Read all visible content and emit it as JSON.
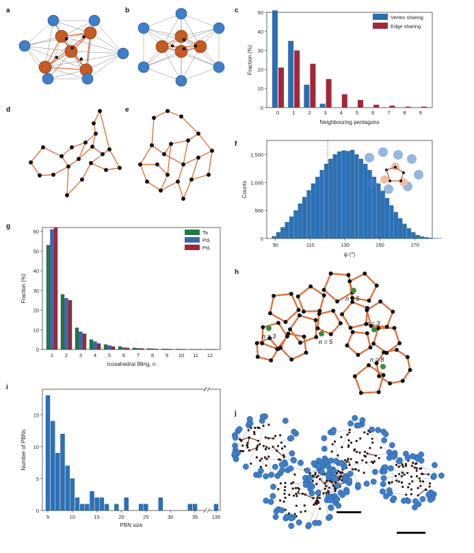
{
  "panel_letters": {
    "a": "a",
    "b": "b",
    "c": "c",
    "d": "d",
    "e": "e",
    "f": "f",
    "g": "g",
    "h": "h",
    "i": "i",
    "j": "j"
  },
  "colors": {
    "vertex": "#2a6db3",
    "edge": "#a3273a",
    "ta": "#1f7a4a",
    "pd1": "#3a66b8",
    "pd2": "#a3273a",
    "blue_bar": "#2a72b8",
    "pbn_bar": "#2a72b8",
    "orange_bond": "#e0703a",
    "blue_atom": "#3f7ec8",
    "orange_atom": "#c55a22",
    "black_atom": "#111111",
    "green_marker": "#3a8c3a"
  },
  "panel_h": {
    "labels": [
      "n = 5",
      "n = 3",
      "n = 3",
      "n = 5",
      "n = 8"
    ]
  },
  "chart_data": [
    {
      "panel": "c",
      "type": "bar",
      "categories": [
        "0",
        "1",
        "2",
        "3",
        "4",
        "5",
        "6",
        "7",
        "8",
        "9"
      ],
      "series": [
        {
          "name": "Vertex sharing",
          "values": [
            51,
            35,
            12,
            2,
            0,
            0,
            0,
            0,
            0,
            0
          ]
        },
        {
          "name": "Edge sharing",
          "values": [
            21,
            30,
            23,
            15,
            7,
            4,
            1.5,
            1,
            0.5,
            0.5
          ]
        }
      ],
      "xlabel": "Neighbouring pentagons",
      "ylabel": "Fraction (%)",
      "ylim": [
        0,
        50
      ],
      "yticks": [
        "0",
        "10",
        "20",
        "30",
        "40",
        "50"
      ],
      "legend": "top-right"
    },
    {
      "panel": "f",
      "type": "bar",
      "x_start": 88,
      "bin_width": 2.5,
      "values": [
        40,
        110,
        200,
        290,
        390,
        500,
        620,
        740,
        860,
        980,
        1100,
        1220,
        1330,
        1420,
        1500,
        1550,
        1570,
        1560,
        1580,
        1500,
        1420,
        1330,
        1220,
        1100,
        980,
        850,
        720,
        590,
        470,
        360,
        260,
        180,
        110,
        60,
        35,
        20,
        10,
        5,
        3
      ],
      "xlabel": "ψ (°)",
      "ylabel": "Counts",
      "xticks": [
        "90",
        "110",
        "130",
        "150",
        "170"
      ],
      "yticks": [
        "0",
        "500",
        "1,000",
        "1,500"
      ],
      "xlim": [
        85,
        180
      ],
      "ylim": [
        0,
        1750
      ],
      "marker_line": 120
    },
    {
      "panel": "g",
      "type": "bar",
      "categories": [
        "1",
        "2",
        "3",
        "4",
        "5",
        "6",
        "7",
        "8",
        "9",
        "10",
        "11",
        "12"
      ],
      "series": [
        {
          "name": "Ta",
          "values": [
            53,
            28,
            11,
            5,
            2.5,
            1.5,
            0.8,
            0.5,
            0.3,
            0.2,
            0.1,
            0.1
          ]
        },
        {
          "name": "Pd1",
          "values": [
            61,
            26,
            9,
            4,
            2,
            1,
            0.6,
            0.4,
            0.3,
            0.2,
            0.1,
            0.1
          ]
        },
        {
          "name": "Pd2",
          "values": [
            62,
            25,
            8,
            3,
            1.5,
            0.8,
            0.5,
            0.3,
            0.2,
            0.1,
            0.1,
            0.1
          ]
        }
      ],
      "legend_labels": [
        "Ta",
        "Pd₁",
        "Pd₂"
      ],
      "xlabel": "Icosahedral filling, n",
      "ylabel": "Fraction (%)",
      "ylim": [
        0,
        62
      ],
      "yticks": [
        "0",
        "10",
        "20",
        "30",
        "40",
        "50",
        "60"
      ],
      "legend": "top-right"
    },
    {
      "panel": "i",
      "type": "bar",
      "bars": [
        {
          "x": 5,
          "v": 18
        },
        {
          "x": 6,
          "v": 14
        },
        {
          "x": 7,
          "v": 9
        },
        {
          "x": 8,
          "v": 12
        },
        {
          "x": 9,
          "v": 7
        },
        {
          "x": 10,
          "v": 5
        },
        {
          "x": 11,
          "v": 2
        },
        {
          "x": 12,
          "v": 1
        },
        {
          "x": 13,
          "v": 1
        },
        {
          "x": 14,
          "v": 3
        },
        {
          "x": 15,
          "v": 2
        },
        {
          "x": 16,
          "v": 2
        },
        {
          "x": 17,
          "v": 1
        },
        {
          "x": 19,
          "v": 1
        },
        {
          "x": 21,
          "v": 2
        },
        {
          "x": 24,
          "v": 1
        },
        {
          "x": 25,
          "v": 1
        },
        {
          "x": 28,
          "v": 2
        },
        {
          "x": 34,
          "v": 1
        },
        {
          "x": 35,
          "v": 1
        },
        {
          "x": 135,
          "v": 1
        }
      ],
      "xlabel": "PBN size",
      "ylabel": "Number of PBNs",
      "xticks": [
        "5",
        "10",
        "15",
        "20",
        "25",
        "30",
        "35",
        "135"
      ],
      "yticks": [
        "0",
        "5",
        "10",
        "15"
      ],
      "ylim": [
        0,
        19
      ],
      "axis_break": true
    }
  ]
}
